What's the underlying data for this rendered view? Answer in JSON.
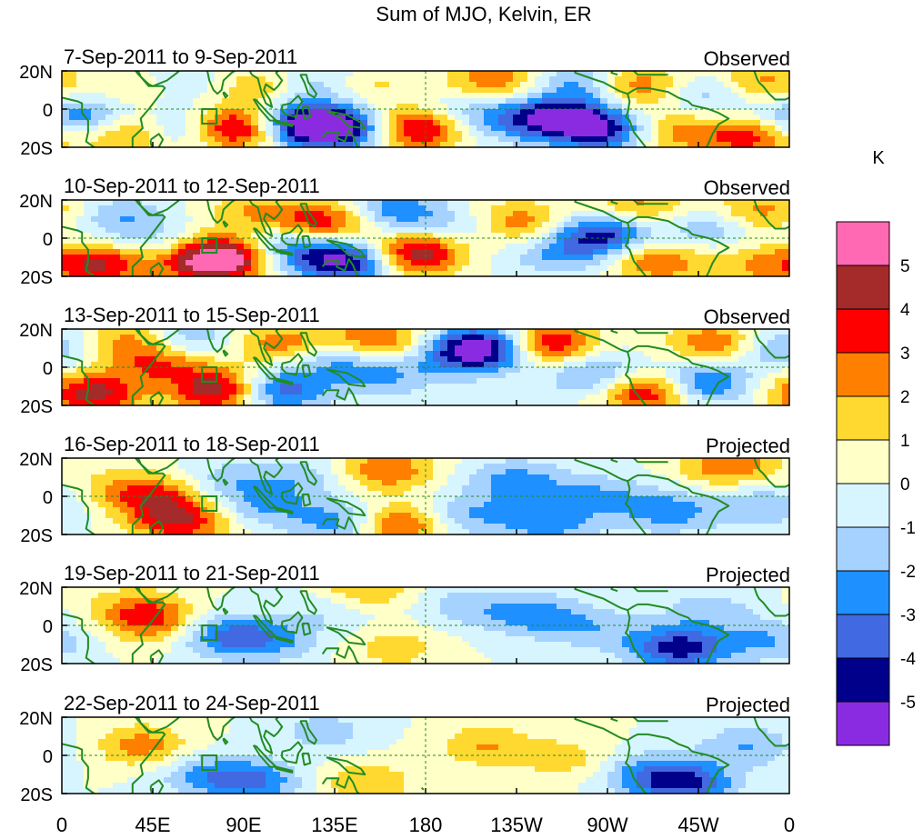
{
  "title": "Sum of MJO, Kelvin, ER",
  "colorbar": {
    "units": "K",
    "tick_labels": [
      "5",
      "4",
      "3",
      "2",
      "1",
      "0",
      "-1",
      "-2",
      "-3",
      "-4",
      "-5"
    ],
    "colors": [
      "#ff69b4",
      "#a52a2a",
      "#ff0000",
      "#ff7f00",
      "#ffd92f",
      "#ffffc8",
      "#d7f5ff",
      "#a6d2ff",
      "#1e90ff",
      "#4169e1",
      "#00008b",
      "#8a2be2"
    ]
  },
  "longitude_labels": [
    "0",
    "45E",
    "90E",
    "135E",
    "180",
    "135W",
    "90W",
    "45W",
    "0"
  ],
  "latitude_labels": [
    "20N",
    "0",
    "20S"
  ],
  "panels": [
    {
      "date_range": "7-Sep-2011 to 9-Sep-2011",
      "status": "Observed"
    },
    {
      "date_range": "10-Sep-2011 to 12-Sep-2011",
      "status": "Observed"
    },
    {
      "date_range": "13-Sep-2011 to 15-Sep-2011",
      "status": "Observed"
    },
    {
      "date_range": "16-Sep-2011 to 18-Sep-2011",
      "status": "Projected"
    },
    {
      "date_range": "19-Sep-2011 to 21-Sep-2011",
      "status": "Projected"
    },
    {
      "date_range": "22-Sep-2011 to 24-Sep-2011",
      "status": "Projected"
    }
  ],
  "anomaly_fields": [
    [
      {
        "lon": 10,
        "lat": -5,
        "v": -3.5
      },
      {
        "lon": 30,
        "lat": -12,
        "v": 3
      },
      {
        "lon": 40,
        "lat": 12,
        "v": 1.5
      },
      {
        "lon": 55,
        "lat": 14,
        "v": -1.5
      },
      {
        "lon": 62,
        "lat": -10,
        "v": -2.5
      },
      {
        "lon": 85,
        "lat": -10,
        "v": 5.5
      },
      {
        "lon": 100,
        "lat": 12,
        "v": 2
      },
      {
        "lon": 120,
        "lat": -8,
        "v": -5.5
      },
      {
        "lon": 140,
        "lat": -10,
        "v": -4.5
      },
      {
        "lon": 125,
        "lat": 14,
        "v": -2
      },
      {
        "lon": 150,
        "lat": 12,
        "v": 1.5
      },
      {
        "lon": 175,
        "lat": -10,
        "v": 5
      },
      {
        "lon": 195,
        "lat": -2,
        "v": -1.5
      },
      {
        "lon": 215,
        "lat": 15,
        "v": 3
      },
      {
        "lon": 225,
        "lat": -5,
        "v": -2.5
      },
      {
        "lon": 250,
        "lat": -5,
        "v": -4.5
      },
      {
        "lon": 255,
        "lat": 14,
        "v": -2.5
      },
      {
        "lon": 270,
        "lat": -12,
        "v": -4
      },
      {
        "lon": 285,
        "lat": 12,
        "v": 3
      },
      {
        "lon": 300,
        "lat": -12,
        "v": 2.5
      },
      {
        "lon": 320,
        "lat": 8,
        "v": -2
      },
      {
        "lon": 340,
        "lat": -15,
        "v": 3.5
      },
      {
        "lon": 345,
        "lat": 14,
        "v": 2.5
      }
    ],
    [
      {
        "lon": 20,
        "lat": -14,
        "v": 4
      },
      {
        "lon": 30,
        "lat": 10,
        "v": -2
      },
      {
        "lon": 50,
        "lat": -5,
        "v": -1.5
      },
      {
        "lon": 65,
        "lat": -12,
        "v": 3
      },
      {
        "lon": 82,
        "lat": -10,
        "v": 5.5
      },
      {
        "lon": 95,
        "lat": 14,
        "v": 2
      },
      {
        "lon": 110,
        "lat": -5,
        "v": -3
      },
      {
        "lon": 130,
        "lat": 8,
        "v": 4
      },
      {
        "lon": 140,
        "lat": -12,
        "v": -5.5
      },
      {
        "lon": 165,
        "lat": 14,
        "v": -3
      },
      {
        "lon": 175,
        "lat": -8,
        "v": 5
      },
      {
        "lon": 200,
        "lat": 5,
        "v": -1.5
      },
      {
        "lon": 225,
        "lat": 8,
        "v": 3
      },
      {
        "lon": 245,
        "lat": -8,
        "v": -2
      },
      {
        "lon": 268,
        "lat": 2,
        "v": -4.5
      },
      {
        "lon": 285,
        "lat": 16,
        "v": 2.5
      },
      {
        "lon": 295,
        "lat": -12,
        "v": 3
      },
      {
        "lon": 320,
        "lat": 5,
        "v": -2
      },
      {
        "lon": 345,
        "lat": 14,
        "v": 2.5
      },
      {
        "lon": 345,
        "lat": -14,
        "v": 2
      }
    ],
    [
      {
        "lon": 15,
        "lat": -14,
        "v": 4.5
      },
      {
        "lon": 35,
        "lat": 14,
        "v": 2.5
      },
      {
        "lon": 50,
        "lat": 2,
        "v": 3
      },
      {
        "lon": 60,
        "lat": 14,
        "v": -2.5
      },
      {
        "lon": 80,
        "lat": -12,
        "v": 5.5
      },
      {
        "lon": 105,
        "lat": -12,
        "v": -4.5
      },
      {
        "lon": 110,
        "lat": 12,
        "v": 3
      },
      {
        "lon": 135,
        "lat": 5,
        "v": -2.5
      },
      {
        "lon": 155,
        "lat": 14,
        "v": 3.5
      },
      {
        "lon": 160,
        "lat": -5,
        "v": -2
      },
      {
        "lon": 195,
        "lat": 6,
        "v": -2
      },
      {
        "lon": 210,
        "lat": 10,
        "v": -5.5
      },
      {
        "lon": 240,
        "lat": 12,
        "v": 4.5
      },
      {
        "lon": 265,
        "lat": -4,
        "v": -3
      },
      {
        "lon": 290,
        "lat": -12,
        "v": 5
      },
      {
        "lon": 315,
        "lat": -8,
        "v": -4
      },
      {
        "lon": 325,
        "lat": 12,
        "v": 3.5
      },
      {
        "lon": 350,
        "lat": 10,
        "v": -2.5
      }
    ],
    [
      {
        "lon": 30,
        "lat": 5,
        "v": 1.5
      },
      {
        "lon": 48,
        "lat": -2,
        "v": 3
      },
      {
        "lon": 60,
        "lat": -14,
        "v": 3.5
      },
      {
        "lon": 82,
        "lat": 8,
        "v": -1.5
      },
      {
        "lon": 100,
        "lat": -5,
        "v": -2
      },
      {
        "lon": 120,
        "lat": 10,
        "v": -1.5
      },
      {
        "lon": 140,
        "lat": -14,
        "v": -3
      },
      {
        "lon": 160,
        "lat": 14,
        "v": 3
      },
      {
        "lon": 165,
        "lat": -15,
        "v": 4
      },
      {
        "lon": 200,
        "lat": -10,
        "v": -2
      },
      {
        "lon": 225,
        "lat": 8,
        "v": -2.5
      },
      {
        "lon": 240,
        "lat": -14,
        "v": -2.5
      },
      {
        "lon": 265,
        "lat": 0,
        "v": -2
      },
      {
        "lon": 300,
        "lat": -8,
        "v": -2.5
      },
      {
        "lon": 330,
        "lat": 16,
        "v": 3
      },
      {
        "lon": 345,
        "lat": -5,
        "v": -2
      }
    ],
    [
      {
        "lon": 35,
        "lat": 10,
        "v": 1.5
      },
      {
        "lon": 45,
        "lat": 2,
        "v": 3
      },
      {
        "lon": 80,
        "lat": -5,
        "v": -3
      },
      {
        "lon": 105,
        "lat": -8,
        "v": -2
      },
      {
        "lon": 135,
        "lat": 10,
        "v": -1.5
      },
      {
        "lon": 148,
        "lat": 18,
        "v": 2.5
      },
      {
        "lon": 165,
        "lat": -12,
        "v": 1.5
      },
      {
        "lon": 200,
        "lat": 10,
        "v": -1.5
      },
      {
        "lon": 235,
        "lat": 5,
        "v": -2.5
      },
      {
        "lon": 265,
        "lat": -2,
        "v": -1.5
      },
      {
        "lon": 305,
        "lat": -12,
        "v": -4.5
      },
      {
        "lon": 320,
        "lat": 8,
        "v": -1.5
      },
      {
        "lon": 350,
        "lat": -8,
        "v": -2
      }
    ],
    [
      {
        "lon": 40,
        "lat": 5,
        "v": 2.5
      },
      {
        "lon": 70,
        "lat": -10,
        "v": -2
      },
      {
        "lon": 95,
        "lat": -14,
        "v": -3
      },
      {
        "lon": 130,
        "lat": 12,
        "v": -1.5
      },
      {
        "lon": 150,
        "lat": -14,
        "v": 2
      },
      {
        "lon": 210,
        "lat": 5,
        "v": 2
      },
      {
        "lon": 250,
        "lat": -2,
        "v": 1.5
      },
      {
        "lon": 290,
        "lat": -10,
        "v": -2.5
      },
      {
        "lon": 310,
        "lat": -15,
        "v": -3.5
      },
      {
        "lon": 340,
        "lat": 5,
        "v": -2
      }
    ]
  ]
}
